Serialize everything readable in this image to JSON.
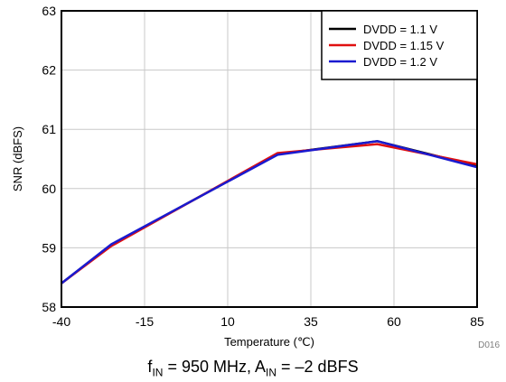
{
  "chart_data": {
    "type": "line",
    "xlabel": "Temperature (℃)",
    "ylabel": "SNR (dBFS)",
    "xlim": [
      -40,
      85
    ],
    "ylim": [
      58,
      63
    ],
    "xticks": [
      -40,
      -15,
      10,
      35,
      60,
      85
    ],
    "yticks": [
      58,
      59,
      60,
      61,
      62,
      63
    ],
    "grid": true,
    "legend_position": "top-right",
    "series": [
      {
        "name": "DVDD = 1.1 V",
        "color": "#000000",
        "x": [
          -40,
          -25,
          25,
          55,
          85
        ],
        "y": [
          58.4,
          59.05,
          60.58,
          60.8,
          60.38
        ]
      },
      {
        "name": "DVDD = 1.15 V",
        "color": "#e01010",
        "x": [
          -40,
          -25,
          25,
          55,
          85
        ],
        "y": [
          58.4,
          59.03,
          60.6,
          60.75,
          60.41
        ]
      },
      {
        "name": "DVDD = 1.2 V",
        "color": "#1a1ad0",
        "x": [
          -40,
          -25,
          25,
          55,
          85
        ],
        "y": [
          58.4,
          59.06,
          60.57,
          60.8,
          60.36
        ]
      }
    ]
  },
  "figure_id": "D016",
  "caption": {
    "f_main": "f",
    "f_sub": "IN",
    "f_val": " = 950 MHz, ",
    "a_main": "A",
    "a_sub": "IN",
    "a_val": " = –2 dBFS"
  }
}
